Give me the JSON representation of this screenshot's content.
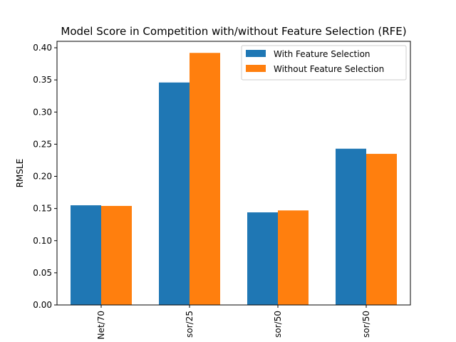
{
  "chart_data": {
    "type": "bar",
    "title": "Model Score in Competition with/without Feature Selection (RFE)",
    "xlabel": "",
    "ylabel": "RMSLE",
    "categories": [
      "Net/70",
      "sor/25",
      "sor/50",
      "sor/50"
    ],
    "series": [
      {
        "name": "With Feature Selection",
        "color": "#1f77b4",
        "values": [
          0.155,
          0.346,
          0.144,
          0.243
        ]
      },
      {
        "name": "Without Feature Selection",
        "color": "#ff7f0e",
        "values": [
          0.154,
          0.392,
          0.147,
          0.235
        ]
      }
    ],
    "ylim": [
      0,
      0.41
    ],
    "yticks": [
      "0.00",
      "0.05",
      "0.10",
      "0.15",
      "0.20",
      "0.25",
      "0.30",
      "0.35",
      "0.40"
    ],
    "grid": false,
    "legend_position": "top-right"
  }
}
